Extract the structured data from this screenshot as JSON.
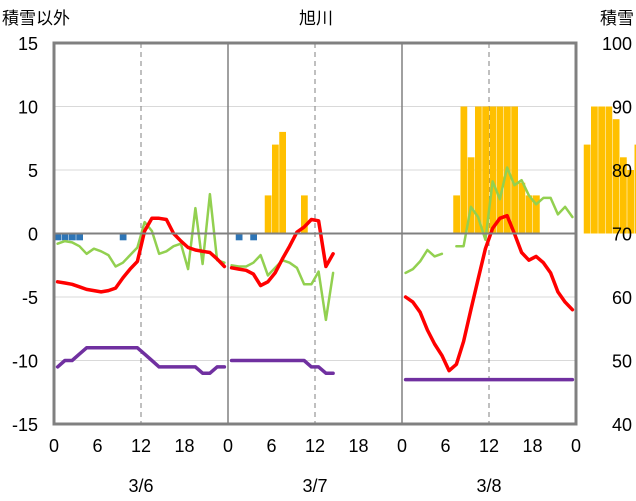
{
  "chart_data": {
    "type": "bar+line",
    "title": "旭川",
    "left_axis_label": "積雪以外",
    "right_axis_label": "積雪",
    "left_ylim": [
      -15,
      15
    ],
    "left_ticks": [
      "-15",
      "-10",
      "-5",
      "0",
      "5",
      "10",
      "15"
    ],
    "right_ylim": [
      40,
      100
    ],
    "right_ticks": [
      "40",
      "50",
      "60",
      "70",
      "80",
      "90",
      "100"
    ],
    "hour_ticks": [
      "0",
      "6",
      "12",
      "18",
      "0",
      "6",
      "12",
      "18",
      "0",
      "6",
      "12",
      "18",
      "0"
    ],
    "days": [
      "3/6",
      "3/7",
      "3/8"
    ],
    "grid": true,
    "colors": {
      "snowfall_bar": "#FFC000",
      "precip_bar": "#2E75B6",
      "temperature": "#FF0000",
      "wind": "#92D050",
      "snow_depth": "#7030A0",
      "axis": "#808080"
    },
    "series": {
      "snowfall_bars": {
        "x": [
          29,
          30,
          31,
          34,
          55,
          56,
          57,
          58,
          59,
          60,
          61,
          62,
          63,
          64,
          65,
          66,
          73,
          74,
          75,
          76,
          77,
          78,
          79,
          80
        ],
        "values": [
          3,
          7,
          8,
          3,
          3,
          10,
          6,
          10,
          10,
          10,
          10,
          10,
          10,
          4,
          3,
          3,
          7,
          10,
          10,
          10,
          9,
          6,
          5,
          7
        ]
      },
      "precip_bars": {
        "x": [
          0,
          1,
          2,
          3,
          4,
          5,
          6,
          7,
          8,
          9,
          10,
          11,
          12,
          13,
          14,
          15,
          16,
          17,
          18,
          19,
          20,
          21,
          22,
          23,
          24,
          25,
          26,
          27,
          28,
          29,
          30,
          31,
          32,
          33,
          34,
          35,
          36,
          37,
          38,
          39,
          40,
          41,
          42,
          43,
          44,
          45,
          46,
          47,
          48,
          49,
          50,
          51,
          52,
          53,
          54,
          55,
          56,
          57,
          58,
          59,
          60,
          61,
          62,
          63,
          64,
          65,
          66,
          67,
          68,
          69,
          70,
          71,
          72,
          73,
          74,
          75,
          76,
          77,
          78,
          79,
          80,
          81,
          82,
          83,
          84,
          85,
          86,
          87,
          88,
          89,
          90,
          91,
          92,
          93,
          94,
          95,
          96,
          97,
          98,
          99
        ],
        "values": [
          -0.3,
          -0.3,
          -0.3,
          -0.3,
          0,
          0,
          0,
          0,
          0,
          -0.3,
          0,
          0,
          0,
          0,
          0,
          0,
          0,
          0,
          0,
          0,
          0,
          0,
          0,
          0,
          0,
          -0.3,
          0,
          -0.3,
          0,
          0,
          0,
          0,
          0,
          0,
          0,
          0,
          0,
          0,
          0,
          0,
          0,
          0,
          0,
          0,
          0,
          0,
          0,
          0,
          0,
          0,
          0,
          0,
          0,
          0,
          0,
          0,
          0,
          0,
          0,
          0,
          0,
          0,
          0,
          0,
          0,
          0,
          0,
          0,
          0,
          0,
          0,
          0,
          0,
          0,
          0,
          0,
          0,
          0,
          0,
          0,
          0,
          0,
          0,
          0,
          0,
          0,
          0,
          0,
          0,
          0,
          0,
          0,
          0,
          0,
          0,
          0,
          0,
          0,
          0,
          0
        ]
      },
      "temperature": {
        "day1": [
          -3.8,
          -3.9,
          -4.0,
          -4.2,
          -4.4,
          -4.5,
          -4.6,
          -4.5,
          -4.3,
          -3.5,
          -2.8,
          -2.2,
          0.2,
          1.2,
          1.2,
          1.1,
          0.0,
          -0.6,
          -1.1,
          -1.3,
          -1.4,
          -1.5,
          -2.0,
          -2.6
        ],
        "day2": [
          -2.7,
          -2.8,
          -2.9,
          -3.2,
          -4.1,
          -3.8,
          -3.1,
          -2.0,
          -1.0,
          0.1,
          0.5,
          1.1,
          1.0,
          -2.6,
          -1.6
        ],
        "day3": [
          -5.0,
          -5.4,
          -6.2,
          -7.6,
          -8.7,
          -9.6,
          -10.8,
          -10.3,
          -8.5,
          -6.0,
          -3.6,
          -1.2,
          0.4,
          1.2,
          1.4,
          0.0,
          -1.5,
          -2.1,
          -1.8,
          -2.3,
          -3.1,
          -4.6,
          -5.4,
          -6.0
        ]
      },
      "wind": {
        "day1": [
          -0.8,
          -0.6,
          -0.7,
          -1.0,
          -1.6,
          -1.2,
          -1.4,
          -1.7,
          -2.6,
          -2.3,
          -1.7,
          -1.1,
          0.9,
          0.2,
          -1.6,
          -1.4,
          -1.0,
          -0.8,
          -2.8,
          2.0,
          -2.4,
          3.1,
          -2.1,
          -2.3
        ],
        "day2": [
          -2.5,
          -2.6,
          -2.6,
          -2.3,
          -1.7,
          -3.3,
          -2.7,
          -2.1,
          -2.3,
          -2.7,
          -4.0,
          -4.0,
          -3.0,
          -6.8,
          -3.1
        ],
        "day3": [
          -3.1,
          -2.8,
          -2.2,
          -1.3,
          -1.8,
          -1.6,
          null,
          -1.0,
          -1.0,
          2.1,
          1.3,
          -0.5,
          4.1,
          2.7,
          5.2,
          3.8,
          4.2,
          3.0,
          2.3,
          2.8,
          2.8,
          1.5,
          2.1,
          1.3
        ]
      },
      "snow_depth": {
        "day1": [
          49,
          50,
          50,
          51,
          52,
          52,
          52,
          52,
          52,
          52,
          52,
          52,
          51,
          50,
          49,
          49,
          49,
          49,
          49,
          49,
          48,
          48,
          49,
          49
        ],
        "day2": [
          50,
          50,
          50,
          50,
          50,
          50,
          50,
          50,
          50,
          50,
          50,
          49,
          49,
          48,
          48
        ],
        "day3": [
          47,
          47,
          47,
          47,
          47,
          47,
          47,
          47,
          47,
          47,
          47,
          47,
          47,
          47,
          47,
          47,
          47,
          47,
          47,
          47,
          47,
          47,
          47,
          47
        ]
      }
    }
  }
}
